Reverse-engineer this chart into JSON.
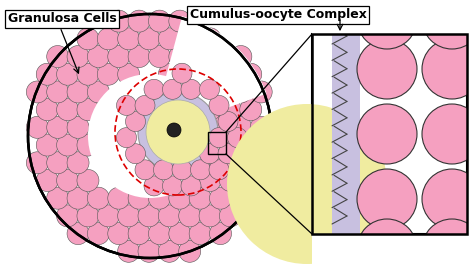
{
  "bg_color": "#ffffff",
  "pink_fill": "#f5a0c0",
  "yellow_fill": "#f0eca0",
  "lavender_fill": "#c8c0e0",
  "black": "#000000",
  "dark_gray": "#222222",
  "red_dashed": "#dd0000",
  "label_granulosa": "Granulosa Cells",
  "label_cumulus": "Cumulus-oocyte Complex",
  "fig_w": 4.74,
  "fig_h": 2.72,
  "dpi": 100
}
